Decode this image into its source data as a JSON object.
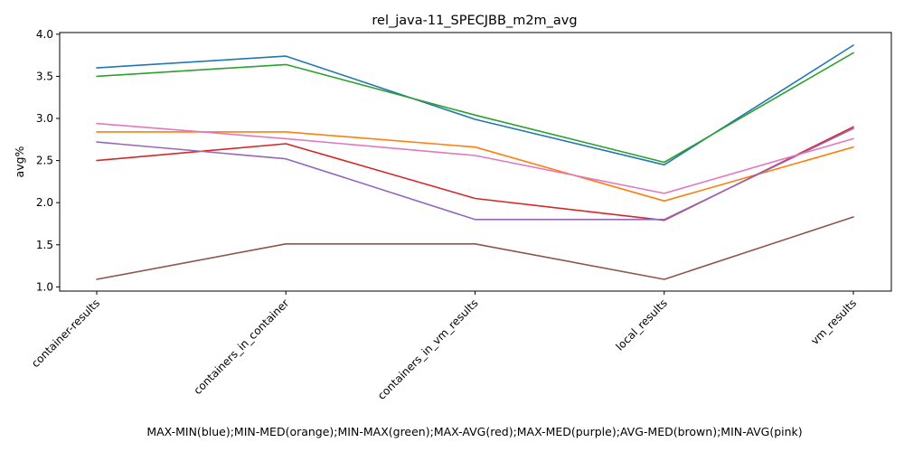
{
  "chart_data": {
    "type": "line",
    "title": "rel_java-11_SPECJBB_m2m_avg",
    "xlabel": "MAX-MIN(blue);MIN-MED(orange);MIN-MAX(green);MAX-AVG(red);MAX-MED(purple);AVG-MED(brown);MIN-AVG(pink)",
    "ylabel": "avg%",
    "categories": [
      "container-results",
      "containers_in_container",
      "containers_in_vm_results",
      "local_results",
      "vm_results"
    ],
    "ylim": [
      0.95,
      4.02
    ],
    "yticks": [
      "1.0",
      "1.5",
      "2.0",
      "2.5",
      "3.0",
      "3.5",
      "4.0"
    ],
    "grid": false,
    "series": [
      {
        "color": "#1f77b4",
        "values": [
          3.6,
          3.74,
          2.99,
          2.45,
          3.87
        ]
      },
      {
        "color": "#ff7f0e",
        "values": [
          2.84,
          2.84,
          2.66,
          2.02,
          2.66
        ]
      },
      {
        "color": "#2ca02c",
        "values": [
          3.5,
          3.64,
          3.04,
          2.48,
          3.78
        ]
      },
      {
        "color": "#d62728",
        "values": [
          2.5,
          2.7,
          2.05,
          1.79,
          2.9
        ]
      },
      {
        "color": "#9467bd",
        "values": [
          2.72,
          2.52,
          1.8,
          1.8,
          2.88
        ]
      },
      {
        "color": "#8c564b",
        "values": [
          1.09,
          1.51,
          1.51,
          1.09,
          1.83
        ]
      },
      {
        "color": "#e377c2",
        "values": [
          2.94,
          2.76,
          2.56,
          2.11,
          2.76
        ]
      }
    ]
  }
}
